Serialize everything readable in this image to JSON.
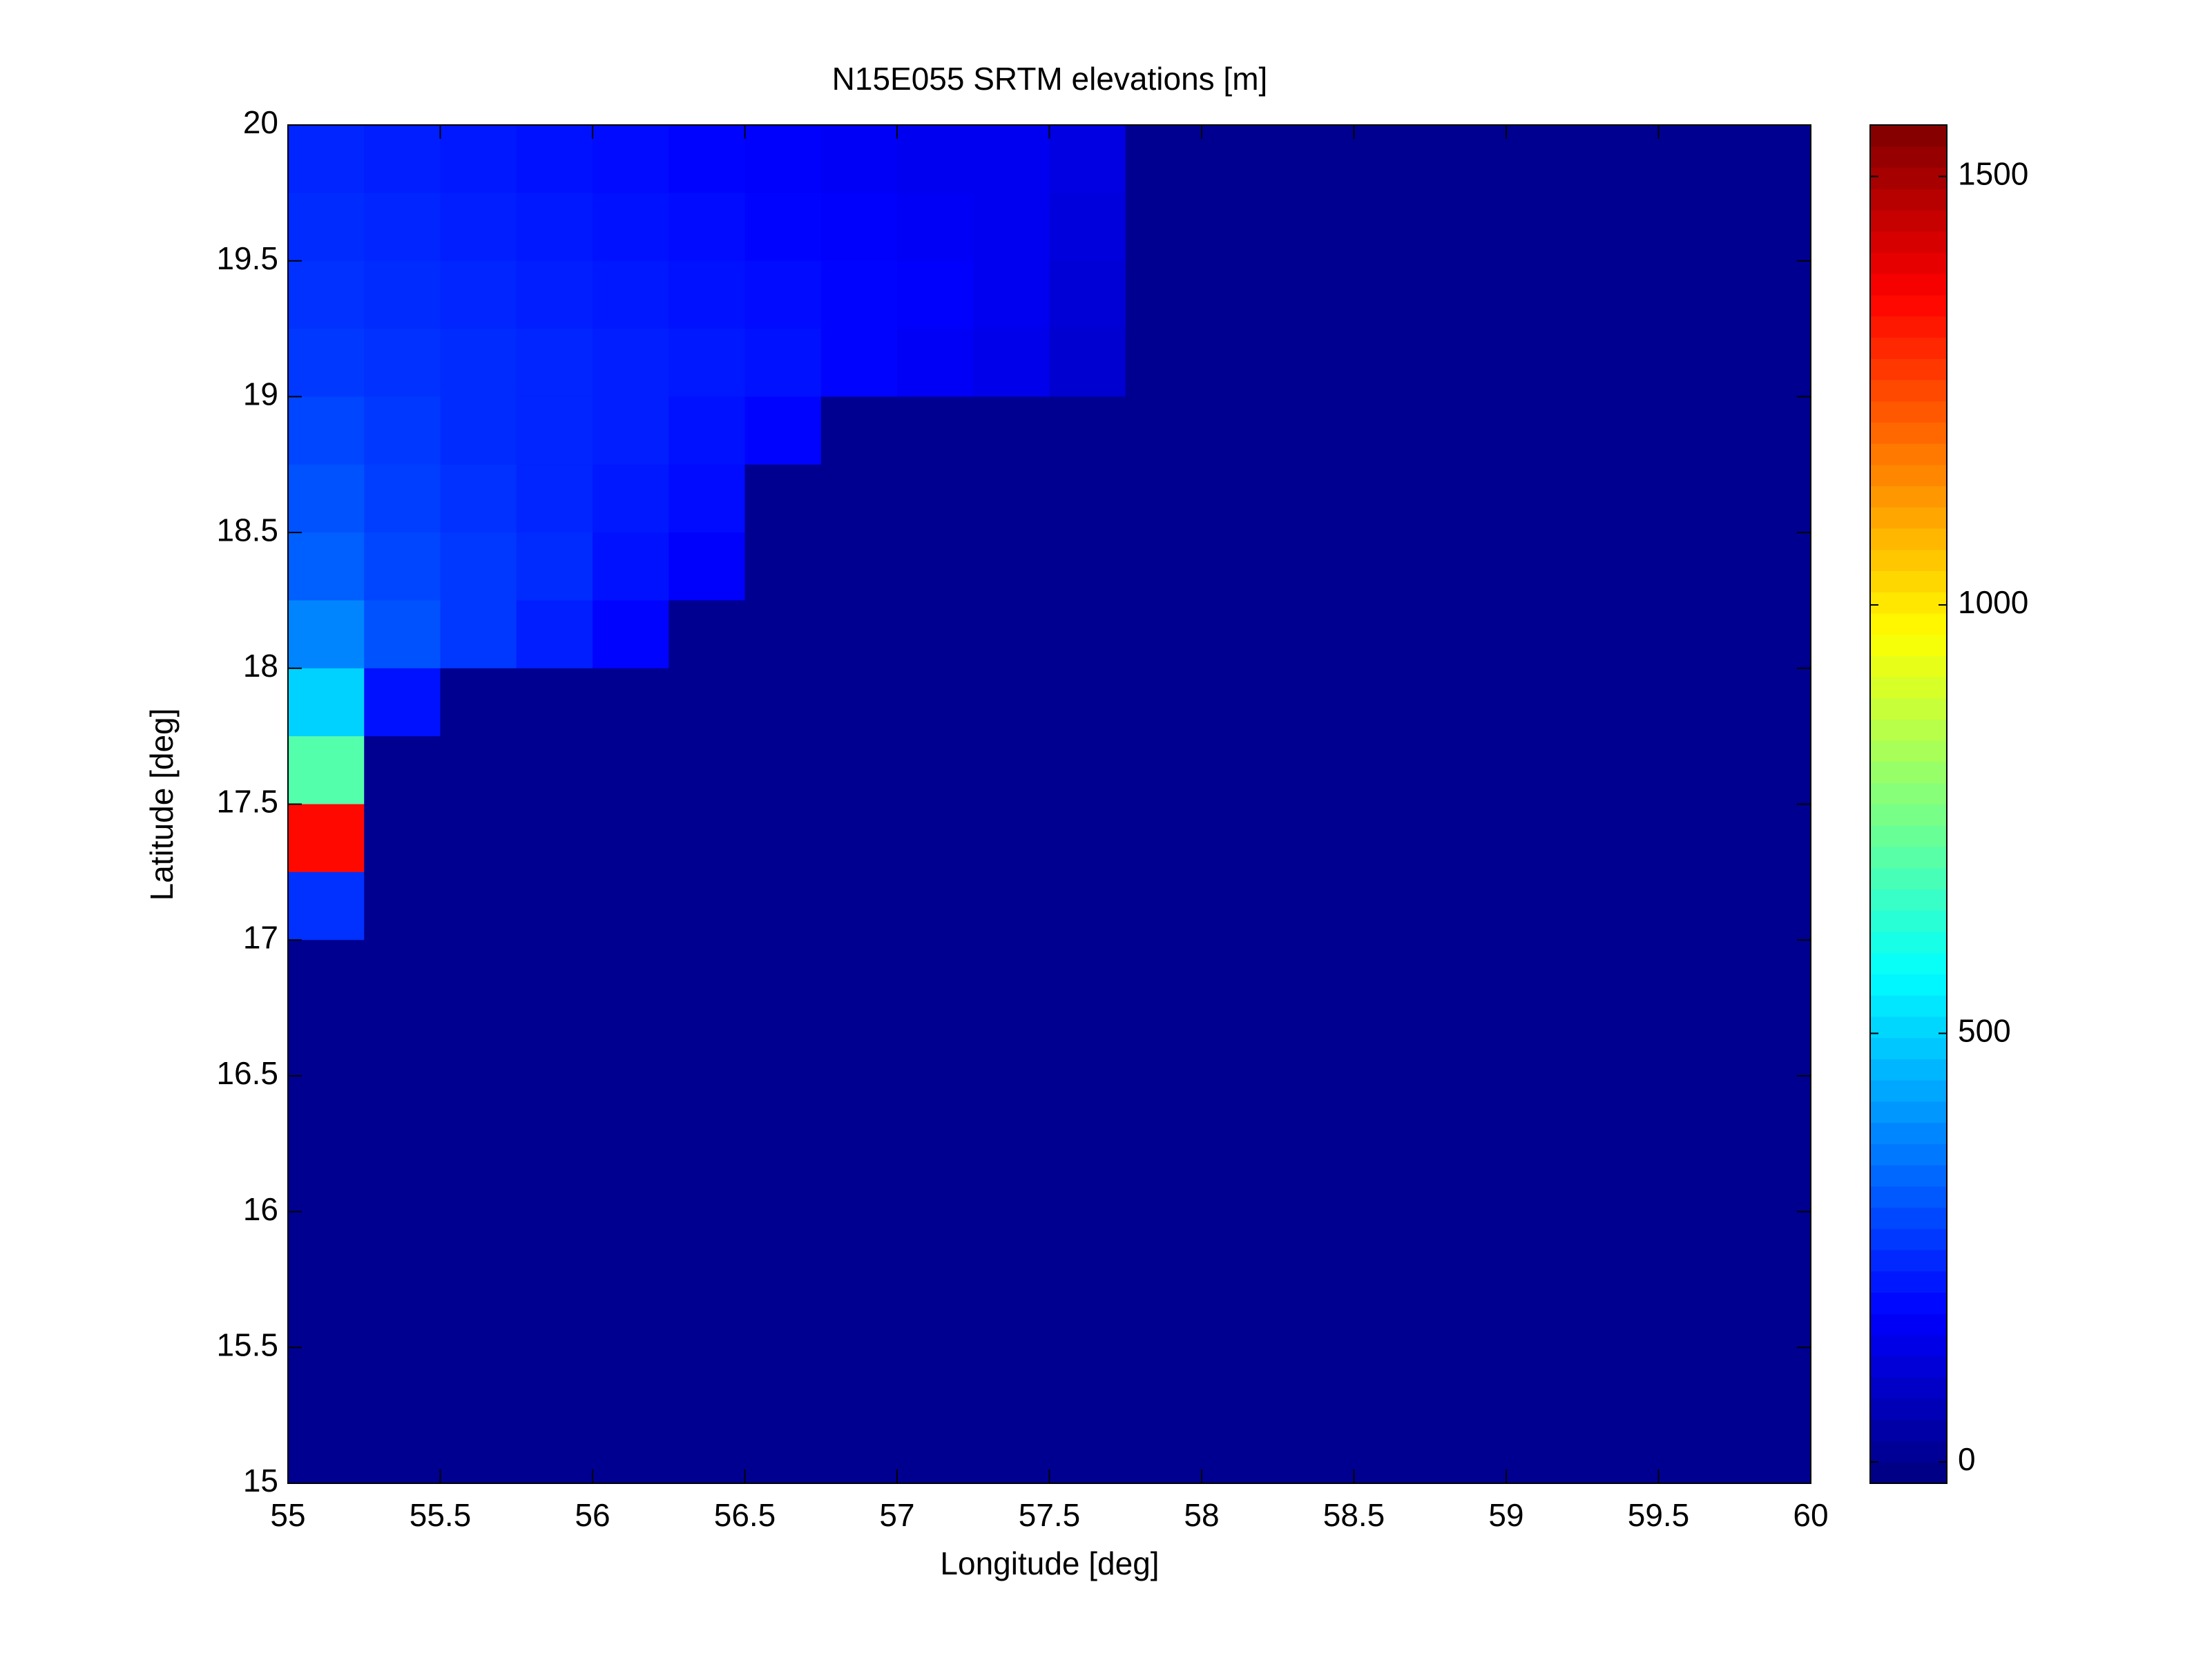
{
  "chart_data": {
    "type": "heatmap",
    "title": "N15E055 SRTM elevations [m]",
    "x_label": "Longitude [deg]",
    "y_label": "Latitude [deg]",
    "xlim": [
      55,
      60
    ],
    "ylim": [
      15,
      20
    ],
    "xticks": [
      55,
      55.5,
      56,
      56.5,
      57,
      57.5,
      58,
      58.5,
      59,
      59.5,
      60
    ],
    "yticks": [
      15,
      15.5,
      16,
      16.5,
      17,
      17.5,
      18,
      18.5,
      19,
      19.5,
      20
    ],
    "clim": [
      -25,
      1560
    ],
    "cticks": [
      0,
      500,
      1000,
      1500
    ],
    "colormap": "jet",
    "z": [
      [
        230,
        220,
        210,
        200,
        190,
        180,
        170,
        160,
        150,
        150,
        130,
        0,
        0,
        0,
        0,
        0,
        0,
        0,
        0,
        0
      ],
      [
        240,
        230,
        220,
        210,
        200,
        190,
        180,
        170,
        160,
        150,
        120,
        0,
        0,
        0,
        0,
        0,
        0,
        0,
        0,
        0
      ],
      [
        250,
        240,
        230,
        220,
        210,
        200,
        190,
        180,
        170,
        150,
        110,
        0,
        0,
        0,
        0,
        0,
        0,
        0,
        0,
        0
      ],
      [
        260,
        250,
        240,
        230,
        220,
        210,
        200,
        180,
        160,
        140,
        100,
        0,
        0,
        0,
        0,
        0,
        0,
        0,
        0,
        0
      ],
      [
        280,
        260,
        240,
        230,
        220,
        200,
        180,
        0,
        0,
        0,
        0,
        0,
        0,
        0,
        0,
        0,
        0,
        0,
        0,
        0
      ],
      [
        300,
        270,
        250,
        230,
        210,
        190,
        0,
        0,
        0,
        0,
        0,
        0,
        0,
        0,
        0,
        0,
        0,
        0,
        0,
        0
      ],
      [
        320,
        280,
        260,
        240,
        200,
        170,
        0,
        0,
        0,
        0,
        0,
        0,
        0,
        0,
        0,
        0,
        0,
        0,
        0,
        0
      ],
      [
        380,
        300,
        260,
        220,
        180,
        0,
        0,
        0,
        0,
        0,
        0,
        0,
        0,
        0,
        0,
        0,
        0,
        0,
        0,
        0
      ],
      [
        500,
        200,
        0,
        0,
        0,
        0,
        0,
        0,
        0,
        0,
        0,
        0,
        0,
        0,
        0,
        0,
        0,
        0,
        0,
        0
      ],
      [
        700,
        0,
        0,
        0,
        0,
        0,
        0,
        0,
        0,
        0,
        0,
        0,
        0,
        0,
        0,
        0,
        0,
        0,
        0,
        0
      ],
      [
        1350,
        0,
        0,
        0,
        0,
        0,
        0,
        0,
        0,
        0,
        0,
        0,
        0,
        0,
        0,
        0,
        0,
        0,
        0,
        0
      ],
      [
        250,
        0,
        0,
        0,
        0,
        0,
        0,
        0,
        0,
        0,
        0,
        0,
        0,
        0,
        0,
        0,
        0,
        0,
        0,
        0
      ],
      [
        0,
        0,
        0,
        0,
        0,
        0,
        0,
        0,
        0,
        0,
        0,
        0,
        0,
        0,
        0,
        0,
        0,
        0,
        0,
        0
      ],
      [
        0,
        0,
        0,
        0,
        0,
        0,
        0,
        0,
        0,
        0,
        0,
        0,
        0,
        0,
        0,
        0,
        0,
        0,
        0,
        0
      ],
      [
        0,
        0,
        0,
        0,
        0,
        0,
        0,
        0,
        0,
        0,
        0,
        0,
        0,
        0,
        0,
        0,
        0,
        0,
        0,
        0
      ],
      [
        0,
        0,
        0,
        0,
        0,
        0,
        0,
        0,
        0,
        0,
        0,
        0,
        0,
        0,
        0,
        0,
        0,
        0,
        0,
        0
      ],
      [
        0,
        0,
        0,
        0,
        0,
        0,
        0,
        0,
        0,
        0,
        0,
        0,
        0,
        0,
        0,
        0,
        0,
        0,
        0,
        0
      ],
      [
        0,
        0,
        0,
        0,
        0,
        0,
        0,
        0,
        0,
        0,
        0,
        0,
        0,
        0,
        0,
        0,
        0,
        0,
        0,
        0
      ],
      [
        0,
        0,
        0,
        0,
        0,
        0,
        0,
        0,
        0,
        0,
        0,
        0,
        0,
        0,
        0,
        0,
        0,
        0,
        0,
        0
      ],
      [
        0,
        0,
        0,
        0,
        0,
        0,
        0,
        0,
        0,
        0,
        0,
        0,
        0,
        0,
        0,
        0,
        0,
        0,
        0,
        0
      ]
    ]
  }
}
